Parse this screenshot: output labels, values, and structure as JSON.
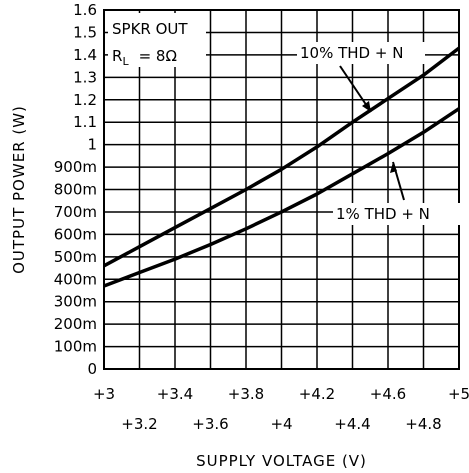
{
  "chart_data": {
    "type": "line",
    "xlabel": "SUPPLY VOLTAGE (V)",
    "ylabel": "OUTPUT POWER (W)",
    "xlim": [
      3,
      5
    ],
    "ylim": [
      0,
      1.6
    ],
    "grid": true,
    "x_ticks": [
      3.0,
      3.2,
      3.4,
      3.6,
      3.8,
      4.0,
      4.2,
      4.4,
      4.6,
      4.8,
      5.0
    ],
    "x_tick_labels": [
      "+3",
      "+3.2",
      "+3.4",
      "+3.6",
      "+3.8",
      "+4",
      "+4.2",
      "+4.4",
      "+4.6",
      "+4.8",
      "+5"
    ],
    "y_ticks": [
      0,
      0.1,
      0.2,
      0.3,
      0.4,
      0.5,
      0.6,
      0.7,
      0.8,
      0.9,
      1.0,
      1.1,
      1.2,
      1.3,
      1.4,
      1.5,
      1.6
    ],
    "y_tick_labels": [
      "0",
      "100m",
      "200m",
      "300m",
      "400m",
      "500m",
      "600m",
      "700m",
      "800m",
      "900m",
      "1",
      "1.1",
      "1.2",
      "1.3",
      "1.4",
      "1.5",
      "1.6"
    ],
    "annotation_box": {
      "line1": "SPKR OUT",
      "r_main": "R",
      "r_sub": "L",
      "r_value": "= 8Ω"
    },
    "series": [
      {
        "name": "10% THD + N",
        "x": [
          3.0,
          3.2,
          3.4,
          3.6,
          3.8,
          4.0,
          4.2,
          4.4,
          4.6,
          4.8,
          5.0
        ],
        "y": [
          0.46,
          0.545,
          0.63,
          0.715,
          0.8,
          0.89,
          0.99,
          1.1,
          1.205,
          1.31,
          1.43
        ]
      },
      {
        "name": "1% THD + N",
        "x": [
          3.0,
          3.2,
          3.4,
          3.6,
          3.8,
          4.0,
          4.2,
          4.4,
          4.6,
          4.8,
          5.0
        ],
        "y": [
          0.37,
          0.43,
          0.49,
          0.555,
          0.625,
          0.7,
          0.78,
          0.87,
          0.96,
          1.055,
          1.16
        ]
      }
    ]
  }
}
